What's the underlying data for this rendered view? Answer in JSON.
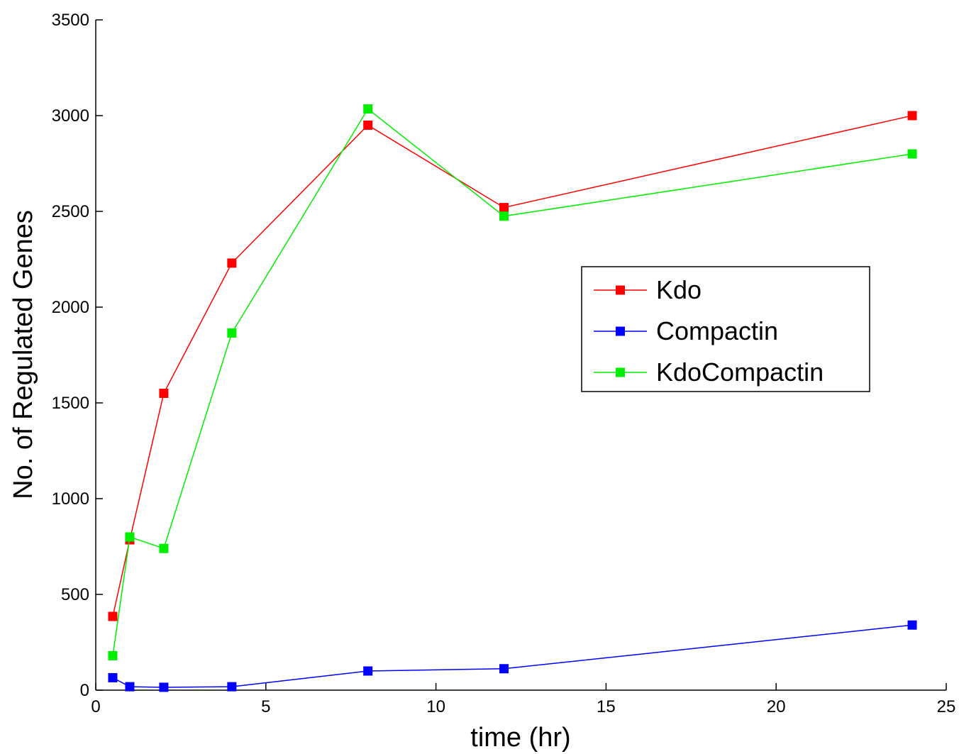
{
  "chart_data": {
    "type": "line",
    "xlabel": "time (hr)",
    "ylabel": "No. of Regulated Genes",
    "xlim": [
      0,
      25
    ],
    "ylim": [
      0,
      3500
    ],
    "xticks": [
      0,
      5,
      10,
      15,
      20,
      25
    ],
    "yticks": [
      0,
      500,
      1000,
      1500,
      2000,
      2500,
      3000,
      3500
    ],
    "grid": false,
    "legend_position": "right",
    "x": [
      0.5,
      1,
      2,
      4,
      8,
      12,
      24
    ],
    "series": [
      {
        "name": "Kdo",
        "color": "#ff0000",
        "marker": "square",
        "values": [
          385,
          785,
          1550,
          2230,
          2950,
          2520,
          3000
        ]
      },
      {
        "name": "Compactin",
        "color": "#0000ff",
        "marker": "square",
        "values": [
          65,
          18,
          15,
          18,
          100,
          112,
          340
        ]
      },
      {
        "name": "KdoCompactin",
        "color": "#00ee00",
        "marker": "square",
        "values": [
          180,
          800,
          740,
          1865,
          3035,
          2475,
          2800
        ]
      }
    ]
  }
}
